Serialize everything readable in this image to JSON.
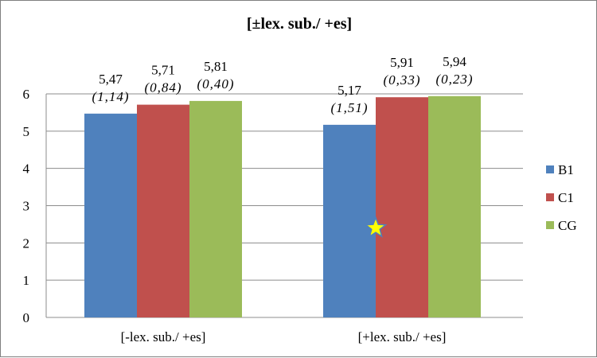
{
  "chart_data": {
    "type": "bar",
    "title": "[±lex. sub./ +es]",
    "categories": [
      "[-lex. sub./ +es]",
      "[+lex. sub./ +es]"
    ],
    "series": [
      {
        "name": "B1",
        "color": "#4f81bd",
        "values": [
          5.47,
          5.17
        ],
        "labels": [
          "5,47",
          "5,17"
        ],
        "sd_labels": [
          "(1,14)",
          "(1,51)"
        ]
      },
      {
        "name": "C1",
        "color": "#c0504d",
        "values": [
          5.71,
          5.91
        ],
        "labels": [
          "5,71",
          "5,91"
        ],
        "sd_labels": [
          "(0,84)",
          "(0,33)"
        ]
      },
      {
        "name": "CG",
        "color": "#9bbb59",
        "values": [
          5.81,
          5.94
        ],
        "labels": [
          "5,81",
          "5,94"
        ],
        "sd_labels": [
          "(0,40)",
          "(0,23)"
        ]
      }
    ],
    "yticks": [
      "0",
      "1",
      "2",
      "3",
      "4",
      "5",
      "6"
    ],
    "ylim": [
      0,
      6
    ],
    "grid": true,
    "legend_position": "right",
    "marker": {
      "shape": "star",
      "fill": "#ffff00",
      "stroke": "#4f81bd",
      "category_index": 1,
      "y": 2.4
    }
  }
}
